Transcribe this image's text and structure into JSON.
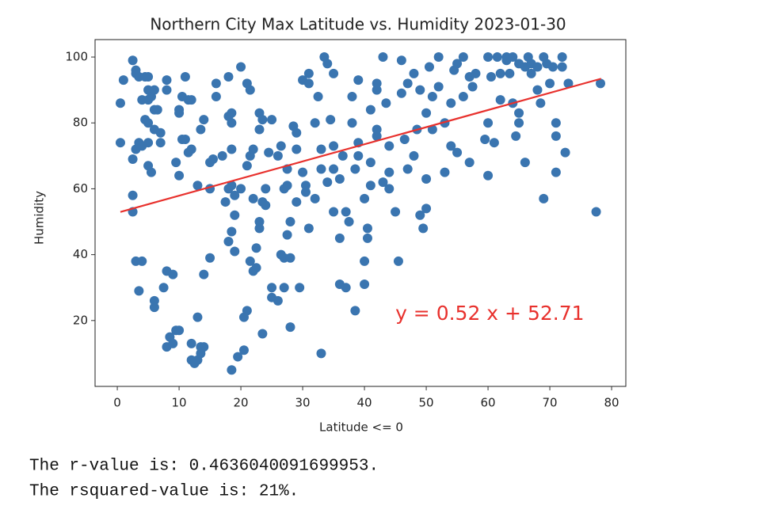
{
  "chart_data": {
    "type": "scatter",
    "title": "Northern City Max Latitude vs. Humidity 2023-01-30",
    "x_label": "Latitude <= 0",
    "y_label": "Humidity",
    "xlim": [
      -3.6,
      82.3
    ],
    "ylim": [
      0,
      105.3
    ],
    "xticks": [
      0,
      10,
      20,
      30,
      40,
      50,
      60,
      70,
      80
    ],
    "yticks": [
      20,
      40,
      60,
      80,
      100
    ],
    "color": "#3a75b0",
    "x": [
      0.5,
      0.5,
      1,
      2.5,
      3,
      3,
      3.5,
      4.5,
      5,
      5,
      5.5,
      6,
      5,
      4,
      4.5,
      5,
      6,
      6.5,
      6,
      7,
      7,
      5,
      4,
      3,
      3.5,
      2.5,
      5,
      5.5,
      2.5,
      2.5,
      3,
      4,
      3.5,
      6,
      6,
      7.5,
      8,
      9,
      8,
      8.5,
      9,
      9.5,
      10,
      8,
      8,
      9.5,
      10,
      10,
      10.5,
      11,
      11.5,
      12,
      11,
      10.5,
      10,
      12,
      11.5,
      12,
      12,
      12.5,
      13,
      13.5,
      14,
      13.5,
      13,
      14,
      15,
      13,
      13.5,
      14,
      15,
      15.5,
      15,
      16,
      16,
      17,
      18,
      18,
      18.5,
      18.5,
      18.5,
      18,
      18.5,
      17.5,
      19,
      19,
      18.5,
      18,
      19,
      19.5,
      18.5,
      20.5,
      20.5,
      21,
      20,
      21,
      21.5,
      21,
      21.5,
      22,
      21.5,
      22,
      22.5,
      22.5,
      23,
      23,
      23.5,
      23.5,
      24,
      24,
      23,
      23.5,
      23,
      24.5,
      25,
      25,
      25,
      26,
      26.5,
      27,
      27,
      27.5,
      28,
      28,
      28,
      27.5,
      27.5,
      28.5,
      29,
      29,
      29.5,
      30,
      30.5,
      31,
      30,
      31,
      32,
      32.5,
      33,
      33,
      33.5,
      34,
      34.5,
      35,
      35,
      35,
      35,
      36,
      36,
      36,
      37,
      37.5,
      37,
      38,
      38,
      38.5,
      38.5,
      39,
      39,
      40,
      40,
      40,
      40.5,
      40.5,
      41,
      41,
      42,
      42,
      42,
      42,
      43,
      43,
      43.5,
      44,
      44,
      45,
      45.5,
      46,
      46,
      47,
      47,
      48,
      48,
      48.5,
      49,
      49,
      49.5,
      50,
      50,
      50,
      50.5,
      51,
      51,
      52,
      52,
      53,
      53,
      54,
      54,
      54.5,
      55,
      55,
      56,
      56,
      57,
      57,
      57.5,
      58,
      59.5,
      60,
      60,
      60,
      60.5,
      61,
      61.5,
      62,
      62,
      63,
      63,
      63.5,
      64,
      64,
      64.5,
      65,
      65,
      65,
      66,
      66,
      66.5,
      67,
      67,
      68,
      68,
      68.5,
      69,
      69,
      69.5,
      70,
      70.5,
      71,
      71,
      71,
      72,
      72,
      72.5,
      73,
      77.5,
      78.2,
      27,
      26,
      31,
      30.5,
      44,
      46.5,
      39,
      41,
      36.5,
      33,
      32,
      26.5,
      29,
      34,
      22,
      20
    ],
    "values": [
      86,
      74,
      93,
      99,
      95,
      96,
      94,
      94,
      94,
      90,
      88,
      90,
      87,
      87,
      81,
      80,
      84,
      84,
      78,
      77,
      74,
      74,
      73,
      72,
      74,
      69,
      67,
      65,
      58,
      53,
      38,
      38,
      29,
      24,
      26,
      30,
      35,
      34,
      12,
      15,
      13,
      17,
      17,
      90,
      93,
      68,
      84,
      83,
      88,
      94,
      87,
      87,
      75,
      75,
      64,
      72,
      71,
      13,
      8,
      7,
      8,
      12,
      12,
      10,
      21,
      34,
      39,
      61,
      78,
      81,
      68,
      69,
      60,
      88,
      92,
      70,
      94,
      82,
      80,
      83,
      72,
      60,
      61,
      56,
      58,
      52,
      47,
      44,
      41,
      9,
      5,
      11,
      21,
      23,
      97,
      92,
      90,
      67,
      70,
      72,
      38,
      35,
      36,
      42,
      48,
      50,
      16,
      56,
      55,
      60,
      83,
      81,
      78,
      71,
      81,
      27,
      30,
      26,
      40,
      39,
      30,
      46,
      50,
      39,
      18,
      61,
      66,
      79,
      77,
      72,
      30,
      93,
      61,
      95,
      65,
      92,
      57,
      88,
      72,
      10,
      100,
      98,
      81,
      95,
      73,
      66,
      53,
      63,
      45,
      31,
      30,
      50,
      53,
      80,
      88,
      66,
      23,
      93,
      74,
      57,
      38,
      31,
      48,
      45,
      68,
      84,
      76,
      78,
      92,
      90,
      100,
      62,
      86,
      65,
      73,
      53,
      38,
      89,
      99,
      66,
      92,
      95,
      70,
      78,
      52,
      90,
      48,
      54,
      63,
      83,
      97,
      78,
      88,
      100,
      91,
      65,
      80,
      86,
      73,
      96,
      98,
      71,
      100,
      88,
      94,
      68,
      91,
      95,
      75,
      64,
      80,
      100,
      94,
      74,
      100,
      87,
      95,
      100,
      99,
      95,
      100,
      86,
      76,
      98,
      80,
      83,
      68,
      97,
      100,
      98,
      95,
      97,
      90,
      86,
      57,
      100,
      98,
      92,
      97,
      65,
      80,
      76,
      100,
      97,
      71,
      92,
      53,
      92,
      60,
      70,
      48,
      59,
      60,
      75,
      70,
      61,
      70,
      66,
      80,
      73,
      56,
      62,
      57,
      60
    ],
    "regression": {
      "color": "#e8312d",
      "x": [
        0.5,
        78.3
      ],
      "values": [
        52.97,
        93.43
      ]
    },
    "annotation": {
      "text": "y = 0.52 x + 52.71",
      "x": 45,
      "y": 20,
      "color": "#e8312d"
    }
  },
  "output": [
    "The r-value is: 0.4636040091699953.",
    "The rsquared-value is: 21%."
  ]
}
